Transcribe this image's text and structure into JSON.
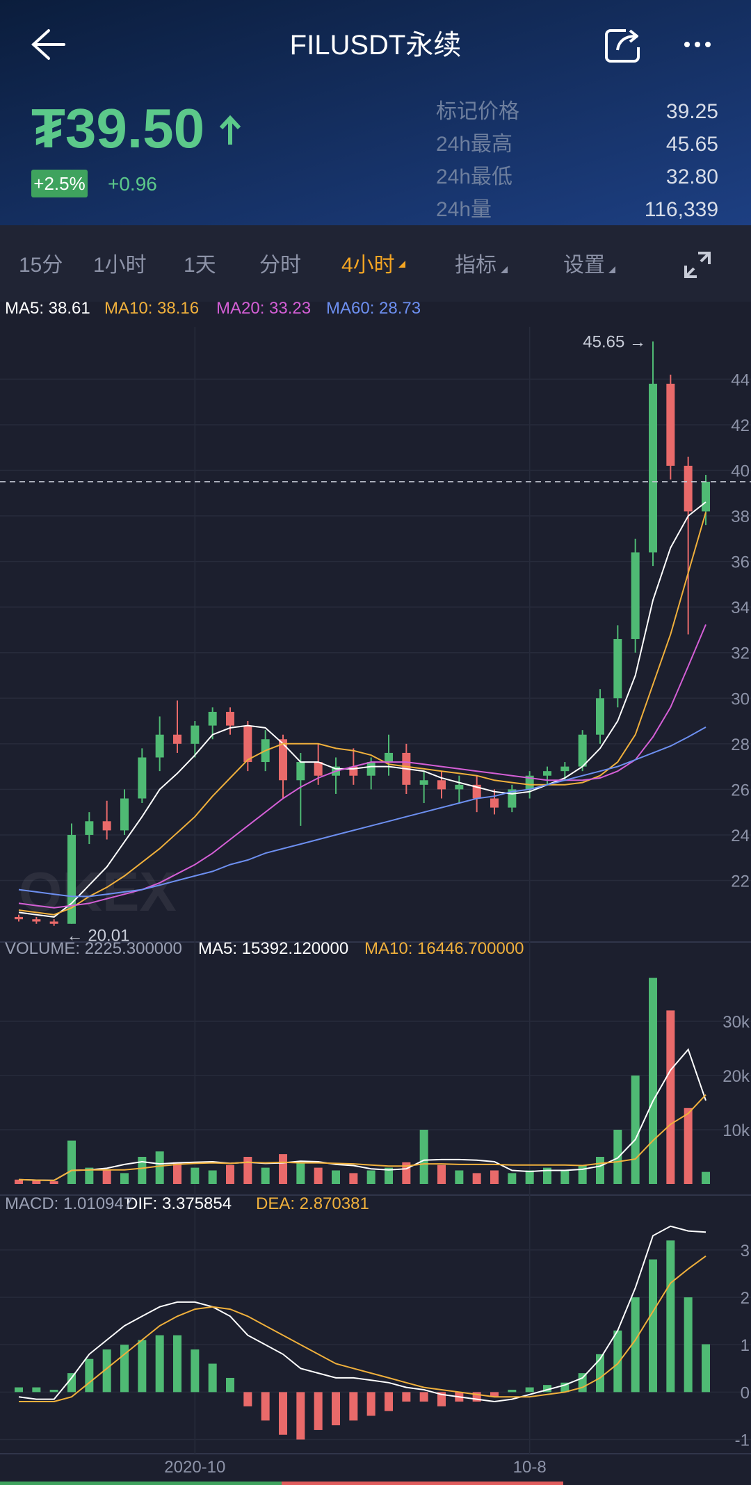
{
  "header": {
    "title": "FILUSDT永续",
    "price": "₮39.50",
    "change_pct": "+2.5%",
    "change": "+0.96",
    "stats": [
      {
        "label": "标记价格",
        "value": "39.25"
      },
      {
        "label": "24h最高",
        "value": "45.65"
      },
      {
        "label": "24h最低",
        "value": "32.80"
      },
      {
        "label": "24h量",
        "value": "116,339"
      }
    ]
  },
  "tabs": [
    "15分",
    "1小时",
    "1天",
    "分时",
    "4小时",
    "指标",
    "设置"
  ],
  "chart_data": [
    {
      "type": "candlestick",
      "watermark": "OKEX",
      "up_color": "#4fba74",
      "down_color": "#e96a6a",
      "open": [
        20.4,
        20.3,
        20.2,
        20.1,
        24.0,
        24.6,
        24.2,
        25.6,
        27.4,
        28.4,
        28.0,
        28.8,
        29.4,
        28.8,
        27.2,
        28.2,
        26.4,
        27.2,
        26.6,
        27.0,
        26.6,
        27.2,
        27.6,
        26.2,
        26.4,
        26.0,
        26.2,
        25.6,
        25.2,
        26.0,
        26.6,
        26.8,
        27.0,
        28.4,
        30.0,
        32.6,
        36.4,
        43.8,
        40.2,
        38.2
      ],
      "high": [
        20.5,
        20.4,
        20.3,
        24.5,
        25.0,
        25.5,
        26.0,
        27.8,
        29.2,
        29.9,
        29.0,
        29.6,
        29.6,
        29.0,
        28.6,
        28.4,
        27.6,
        28.0,
        27.4,
        27.8,
        27.4,
        28.4,
        28.0,
        26.8,
        26.8,
        26.6,
        26.6,
        26.0,
        26.2,
        26.8,
        27.0,
        27.2,
        28.6,
        30.4,
        33.2,
        37.0,
        45.65,
        44.2,
        40.6,
        39.8
      ],
      "low": [
        20.2,
        20.1,
        20.01,
        20.1,
        23.6,
        23.8,
        24.0,
        25.4,
        26.8,
        27.6,
        27.4,
        28.2,
        28.4,
        26.8,
        26.8,
        25.6,
        24.4,
        26.2,
        25.8,
        26.2,
        26.0,
        26.6,
        25.8,
        25.4,
        25.6,
        25.4,
        25.0,
        24.9,
        25.0,
        25.6,
        26.2,
        26.4,
        26.8,
        28.0,
        29.6,
        32.0,
        35.8,
        39.6,
        32.8,
        37.6
      ],
      "close": [
        20.3,
        20.2,
        20.1,
        24.0,
        24.6,
        24.2,
        25.6,
        27.4,
        28.4,
        28.0,
        28.8,
        29.4,
        28.8,
        27.2,
        28.2,
        26.4,
        27.2,
        26.6,
        27.0,
        26.6,
        27.2,
        27.6,
        26.2,
        26.4,
        26.0,
        26.2,
        25.6,
        25.2,
        26.0,
        26.6,
        26.8,
        27.0,
        28.4,
        30.0,
        32.6,
        36.4,
        43.8,
        40.2,
        38.2,
        39.5
      ],
      "series": [
        {
          "name": "MA5: 38.61",
          "color": "#ffffff",
          "values": [
            20.6,
            20.5,
            20.4,
            21.0,
            21.8,
            22.6,
            23.7,
            24.8,
            26.0,
            26.7,
            27.5,
            28.4,
            28.7,
            28.8,
            28.7,
            28.0,
            27.2,
            27.2,
            26.9,
            26.9,
            27.0,
            27.0,
            26.9,
            26.8,
            26.5,
            26.3,
            26.1,
            25.9,
            25.8,
            25.9,
            26.2,
            26.5,
            27.0,
            27.8,
            29.0,
            31.0,
            34.3,
            36.6,
            38.0,
            38.61
          ]
        },
        {
          "name": "MA10: 38.16",
          "color": "#f0b03c",
          "values": [
            20.7,
            20.6,
            20.5,
            20.8,
            21.3,
            21.7,
            22.2,
            22.8,
            23.4,
            24.1,
            24.8,
            25.7,
            26.5,
            27.3,
            27.7,
            28.0,
            28.0,
            28.0,
            27.8,
            27.7,
            27.5,
            27.1,
            27.0,
            26.9,
            26.8,
            26.7,
            26.6,
            26.4,
            26.3,
            26.2,
            26.2,
            26.2,
            26.3,
            26.6,
            27.2,
            28.4,
            30.6,
            32.8,
            35.5,
            38.16
          ]
        },
        {
          "name": "MA20: 33.23",
          "color": "#d45fd6",
          "values": [
            21.0,
            20.9,
            20.8,
            20.9,
            21.0,
            21.2,
            21.4,
            21.6,
            21.9,
            22.3,
            22.7,
            23.2,
            23.8,
            24.4,
            25.0,
            25.6,
            26.1,
            26.5,
            26.8,
            27.0,
            27.2,
            27.2,
            27.2,
            27.1,
            27.0,
            26.9,
            26.8,
            26.7,
            26.6,
            26.5,
            26.4,
            26.4,
            26.4,
            26.5,
            26.8,
            27.3,
            28.3,
            29.6,
            31.4,
            33.23
          ]
        },
        {
          "name": "MA60: 28.73",
          "color": "#6d8ff0",
          "values": [
            21.6,
            21.5,
            21.4,
            21.3,
            21.3,
            21.4,
            21.5,
            21.6,
            21.8,
            22.0,
            22.2,
            22.4,
            22.7,
            22.9,
            23.2,
            23.4,
            23.6,
            23.8,
            24.0,
            24.2,
            24.4,
            24.6,
            24.8,
            25.0,
            25.2,
            25.4,
            25.6,
            25.7,
            25.9,
            26.0,
            26.2,
            26.4,
            26.6,
            26.8,
            27.0,
            27.3,
            27.6,
            27.9,
            28.3,
            28.73
          ]
        }
      ],
      "ylim": [
        19.3,
        46.3
      ],
      "yticks": [
        22,
        24,
        26,
        28,
        30,
        32,
        34,
        36,
        38,
        40,
        42,
        44
      ],
      "annotations": [
        "45.65 →",
        "← 20.01"
      ]
    },
    {
      "type": "volume",
      "series": [
        {
          "name": "VOLUME: 2225.300000",
          "color": "#9aa0b4",
          "style": "bar",
          "values": [
            800,
            600,
            500,
            8000,
            3000,
            2500,
            2000,
            5000,
            6000,
            4000,
            3000,
            2500,
            3500,
            5000,
            3000,
            5500,
            4000,
            3000,
            2500,
            2000,
            2500,
            3000,
            4000,
            10000,
            3500,
            2500,
            2000,
            2500,
            2000,
            2500,
            3000,
            2500,
            3500,
            5000,
            10000,
            20000,
            38000,
            32000,
            14000,
            2225.3
          ]
        },
        {
          "name": "MA5: 15392.120000",
          "color": "#ffffff",
          "style": "line",
          "values": [
            800,
            700,
            650,
            2500,
            2600,
            2900,
            3600,
            4100,
            3700,
            3900,
            4000,
            4100,
            3800,
            4000,
            3800,
            3900,
            4200,
            4100,
            3600,
            3400,
            2800,
            2600,
            2800,
            4400,
            4500,
            4500,
            4400,
            4100,
            2500,
            2300,
            2500,
            2500,
            2700,
            3300,
            4800,
            8200,
            15300,
            21000,
            24800,
            15392.12
          ]
        },
        {
          "name": "MA10: 16446.700000",
          "color": "#f0b03c",
          "style": "line",
          "values": [
            800,
            700,
            650,
            2500,
            2600,
            2600,
            2600,
            2900,
            3300,
            3600,
            3800,
            3900,
            3800,
            4000,
            3900,
            4000,
            3900,
            3900,
            3800,
            3700,
            3500,
            3300,
            3300,
            3700,
            3700,
            3600,
            3600,
            3600,
            3500,
            3500,
            3500,
            3500,
            3400,
            3800,
            4100,
            4600,
            8000,
            11000,
            13000,
            16446.7
          ]
        }
      ],
      "ylim": [
        0,
        40000
      ],
      "yticks": [
        {
          "value": 10000,
          "label": "10k"
        },
        {
          "value": 20000,
          "label": "20k"
        },
        {
          "value": 30000,
          "label": "30k"
        }
      ]
    },
    {
      "type": "macd",
      "categories": [
        null,
        null,
        null,
        null,
        null,
        null,
        null,
        null,
        null,
        null,
        "2020-10",
        null,
        null,
        null,
        null,
        null,
        null,
        null,
        null,
        null,
        null,
        null,
        null,
        null,
        null,
        null,
        null,
        null,
        null,
        "10-8",
        null,
        null,
        null,
        null,
        null,
        null,
        null,
        null,
        null,
        null
      ],
      "series": [
        {
          "name": "DIF: 3.375854",
          "color": "#ffffff",
          "style": "line",
          "values": [
            -0.1,
            -0.15,
            -0.15,
            0.3,
            0.8,
            1.1,
            1.4,
            1.6,
            1.8,
            1.9,
            1.9,
            1.8,
            1.6,
            1.2,
            1.0,
            0.8,
            0.5,
            0.4,
            0.3,
            0.3,
            0.25,
            0.2,
            0.1,
            0.05,
            -0.05,
            -0.1,
            -0.15,
            -0.2,
            -0.15,
            -0.05,
            0.05,
            0.15,
            0.3,
            0.7,
            1.3,
            2.2,
            3.3,
            3.5,
            3.4,
            3.375854
          ]
        },
        {
          "name": "DEA: 2.870381",
          "color": "#f0b03c",
          "style": "line",
          "values": [
            -0.2,
            -0.2,
            -0.2,
            -0.1,
            0.2,
            0.5,
            0.8,
            1.1,
            1.4,
            1.6,
            1.75,
            1.8,
            1.75,
            1.6,
            1.4,
            1.2,
            1.0,
            0.8,
            0.6,
            0.5,
            0.4,
            0.3,
            0.2,
            0.1,
            0.05,
            0.0,
            -0.05,
            -0.1,
            -0.1,
            -0.1,
            -0.05,
            0.0,
            0.1,
            0.3,
            0.6,
            1.1,
            1.7,
            2.3,
            2.6,
            2.870381
          ]
        },
        {
          "name": "MACD: 1.010947",
          "color": "#9aa0b4",
          "style": "bar",
          "values": [
            0.1,
            0.1,
            0.05,
            0.4,
            0.7,
            0.9,
            1.0,
            1.1,
            1.2,
            1.2,
            0.9,
            0.6,
            0.3,
            -0.3,
            -0.6,
            -0.9,
            -1.0,
            -0.8,
            -0.7,
            -0.6,
            -0.5,
            -0.4,
            -0.2,
            -0.2,
            -0.3,
            -0.2,
            -0.2,
            -0.1,
            0.05,
            0.1,
            0.15,
            0.2,
            0.4,
            0.8,
            1.3,
            2.0,
            2.8,
            3.2,
            2.0,
            1.010947
          ]
        }
      ],
      "ylim": [
        -1.3,
        3.6
      ],
      "yticks": [
        -1,
        0,
        1,
        2,
        3
      ]
    }
  ]
}
